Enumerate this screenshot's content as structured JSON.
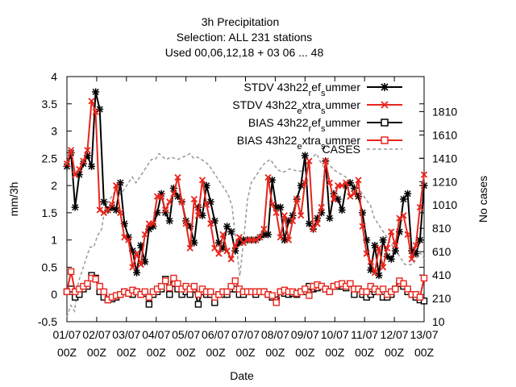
{
  "chart_data": {
    "type": "line",
    "title_lines": [
      "3h Precipitation",
      "Selection: ALL     231 stations",
      "Used  00,06,12,18  + 03 06 ... 48"
    ],
    "xlabel": "Date",
    "ylabel": "mm/3h",
    "y2label": "No cases",
    "ylim": [
      -0.5,
      4
    ],
    "y2lim": [
      10,
      2110
    ],
    "xlim": [
      0,
      12
    ],
    "grid": false,
    "legend_position": "top-right",
    "yticks": [
      "-0.5",
      "0",
      "0.5",
      "1",
      "1.5",
      "2",
      "2.5",
      "3",
      "3.5",
      "4"
    ],
    "y2ticks": [
      "10",
      "210",
      "410",
      "610",
      "810",
      "1010",
      "1210",
      "1410",
      "1610",
      "1810"
    ],
    "xticks": [
      {
        "date": "01/07",
        "hour": "00Z"
      },
      {
        "date": "02/07",
        "hour": "00Z"
      },
      {
        "date": "03/07",
        "hour": "00Z"
      },
      {
        "date": "04/07",
        "hour": "00Z"
      },
      {
        "date": "05/07",
        "hour": "00Z"
      },
      {
        "date": "06/07",
        "hour": "00Z"
      },
      {
        "date": "07/07",
        "hour": "00Z"
      },
      {
        "date": "08/07",
        "hour": "00Z"
      },
      {
        "date": "09/07",
        "hour": "00Z"
      },
      {
        "date": "10/07",
        "hour": "00Z"
      },
      {
        "date": "11/07",
        "hour": "00Z"
      },
      {
        "date": "12/07",
        "hour": "00Z"
      },
      {
        "date": "13/07",
        "hour": "00Z"
      }
    ],
    "series": [
      {
        "name": "STDV 43h22_ref_summer",
        "color": "#000000",
        "marker": "star",
        "axis": "y1",
        "values": [
          2.35,
          2.6,
          1.6,
          2.2,
          2.4,
          2.55,
          2.35,
          3.72,
          3.4,
          1.7,
          1.55,
          1.6,
          1.55,
          2.05,
          1.3,
          1.05,
          0.8,
          0.4,
          0.9,
          0.6,
          1.2,
          1.25,
          1.5,
          1.85,
          1.5,
          1.35,
          1.95,
          1.8,
          1.7,
          1.35,
          1.25,
          0.95,
          1.6,
          1.45,
          2.0,
          1.7,
          1.35,
          0.95,
          0.85,
          1.25,
          1.15,
          0.8,
          0.95,
          1.0,
          1.0,
          1.0,
          1.0,
          1.05,
          1.1,
          1.1,
          2.1,
          1.6,
          1.6,
          1.0,
          1.35,
          1.45,
          1.75,
          2.0,
          2.55,
          1.3,
          1.2,
          1.4,
          1.5,
          2.45,
          1.4,
          1.85,
          1.75,
          1.55,
          2.0,
          2.05,
          1.95,
          1.8,
          1.5,
          1.0,
          0.45,
          0.9,
          0.35,
          1.0,
          0.7,
          0.65,
          0.8,
          1.15,
          1.75,
          1.85,
          0.8,
          0.75,
          1.0,
          2.0
        ],
        "label_main": "STDV 43h22",
        "label_sub": "r",
        "label_mid": "ef",
        "label_sub2": "s",
        "label_end": "ummer"
      },
      {
        "name": "STDV 43h22_extra_summer",
        "color": "#e8251c",
        "marker": "cross",
        "axis": "y1",
        "values": [
          2.4,
          2.65,
          2.2,
          2.3,
          2.45,
          2.65,
          3.55,
          3.35,
          1.55,
          1.5,
          1.55,
          1.65,
          2.0,
          1.5,
          1.05,
          1.0,
          0.5,
          0.75,
          0.55,
          1.1,
          1.3,
          1.3,
          1.8,
          1.8,
          1.55,
          1.7,
          1.85,
          2.15,
          1.7,
          1.3,
          0.85,
          1.75,
          1.45,
          2.1,
          1.65,
          1.3,
          0.85,
          0.75,
          1.1,
          0.8,
          0.65,
          0.9,
          1.05,
          0.95,
          1.0,
          1.0,
          1.0,
          1.05,
          1.2,
          2.15,
          1.65,
          1.5,
          1.05,
          1.45,
          1.0,
          1.35,
          1.75,
          1.45,
          2.05,
          2.45,
          1.2,
          1.3,
          1.6,
          2.45,
          2.05,
          1.75,
          2.0,
          2.0,
          2.05,
          1.8,
          1.85,
          2.1,
          1.25,
          0.75,
          0.6,
          0.4,
          0.85,
          0.5,
          0.85,
          1.15,
          0.9,
          1.4,
          1.45,
          1.1,
          0.65,
          0.9,
          1.6,
          2.2
        ],
        "label_main": "STDV 43h22",
        "label_sub": "e",
        "label_mid": "xtra",
        "label_sub2": "s",
        "label_end": "ummer"
      },
      {
        "name": "BIAS 43h22_ref_summer",
        "color": "#000000",
        "marker": "square",
        "axis": "y1",
        "values": [
          0.05,
          0.1,
          -0.05,
          0.0,
          0.1,
          0.15,
          0.35,
          0.3,
          0.05,
          -0.05,
          -0.1,
          -0.08,
          -0.05,
          0.0,
          0.05,
          0.02,
          0.0,
          0.05,
          0.0,
          0.02,
          -0.18,
          0.0,
          0.05,
          0.1,
          0.28,
          0.0,
          0.2,
          0.1,
          0.0,
          0.05,
          0.0,
          0.1,
          -0.18,
          0.05,
          0.0,
          0.0,
          -0.15,
          0.0,
          0.0,
          0.0,
          0.1,
          0.1,
          0.0,
          0.0,
          0.05,
          0.05,
          0.0,
          0.05,
          0.05,
          0.0,
          -0.05,
          -0.1,
          0.05,
          0.02,
          0.0,
          0.02,
          0.0,
          0.05,
          0.05,
          0.15,
          0.1,
          0.12,
          0.15,
          0.1,
          0.05,
          0.15,
          0.15,
          0.15,
          0.12,
          0.2,
          0.0,
          0.1,
          0.0,
          -0.05,
          0.0,
          0.05,
          0.05,
          -0.05,
          -0.05,
          0.0,
          0.1,
          0.2,
          0.15,
          0.05,
          0.0,
          -0.05,
          -0.1,
          -0.12
        ],
        "label_main": "BIAS 43h22",
        "label_sub": "r",
        "label_mid": "ef",
        "label_sub2": "s",
        "label_end": "ummer"
      },
      {
        "name": "BIAS 43h22_extra_summer",
        "color": "#e8251c",
        "marker": "square",
        "axis": "y1",
        "values": [
          0.05,
          0.42,
          0.05,
          0.1,
          0.15,
          0.2,
          0.3,
          0.28,
          0.15,
          0.05,
          -0.1,
          -0.05,
          -0.02,
          0.0,
          0.05,
          0.02,
          0.08,
          0.05,
          0.0,
          0.05,
          -0.05,
          0.05,
          0.1,
          0.15,
          0.25,
          0.12,
          0.3,
          0.2,
          0.1,
          0.15,
          0.1,
          0.15,
          0.0,
          0.1,
          0.05,
          0.05,
          -0.05,
          0.0,
          0.05,
          0.05,
          0.15,
          0.25,
          0.1,
          0.05,
          0.05,
          0.05,
          0.05,
          0.05,
          0.05,
          0.0,
          -0.02,
          -0.15,
          0.05,
          0.08,
          0.05,
          0.05,
          0.02,
          0.05,
          0.1,
          -0.02,
          0.15,
          0.18,
          0.15,
          0.1,
          0.05,
          0.15,
          0.18,
          0.2,
          0.15,
          0.2,
          0.1,
          0.1,
          0.05,
          0.05,
          0.15,
          0.1,
          0.05,
          0.1,
          0.0,
          0.05,
          0.1,
          0.25,
          0.2,
          0.1,
          0.0,
          0.0,
          -0.05,
          0.3
        ],
        "label_main": "BIAS 43h22",
        "label_sub": "e",
        "label_mid": "xtra",
        "label_sub2": "s",
        "label_end": "ummer"
      },
      {
        "name": "CASES",
        "color": "#999999",
        "marker": "none",
        "dash": true,
        "axis": "y2",
        "values": [
          50,
          150,
          100,
          350,
          450,
          550,
          650,
          650,
          750,
          800,
          1000,
          1050,
          1100,
          1150,
          1100,
          1150,
          1200,
          1250,
          1200,
          1250,
          1300,
          1350,
          1400,
          1400,
          1450,
          1420,
          1400,
          1420,
          1410,
          1400,
          1420,
          1430,
          1450,
          1410,
          1420,
          1400,
          1380,
          1350,
          1300,
          1250,
          1200,
          1150,
          1100,
          1000,
          700,
          400,
          700,
          1050,
          1200,
          1250,
          1300,
          1350,
          1380,
          1400,
          1350,
          1310,
          1290,
          1300,
          1320,
          1310,
          1300,
          1300,
          1310,
          1380,
          1420,
          1450,
          1380,
          1330,
          1360,
          1330,
          1300,
          1280,
          1260,
          1240,
          1210,
          1180,
          1150,
          1100,
          1050,
          1010,
          900,
          850,
          800,
          750,
          700,
          650,
          600,
          550,
          500,
          500,
          500,
          550,
          600,
          550
        ],
        "label_main": "CASES"
      }
    ]
  }
}
